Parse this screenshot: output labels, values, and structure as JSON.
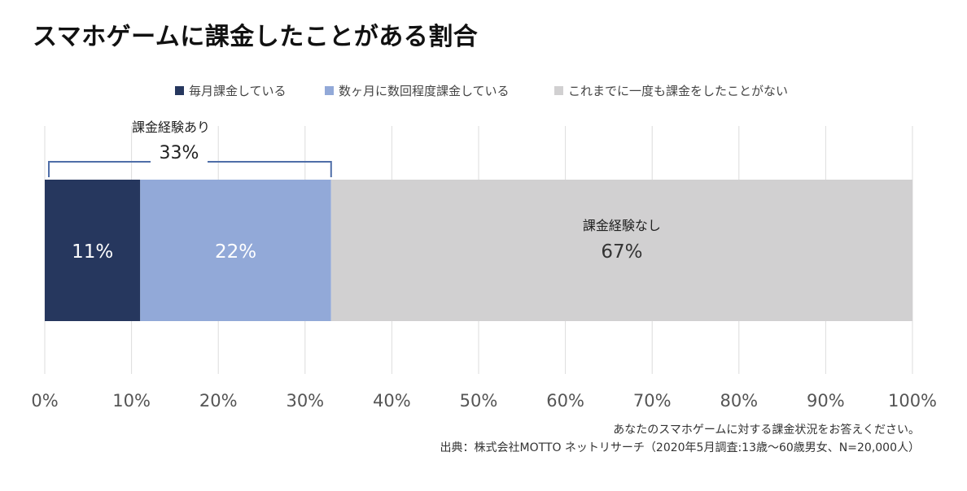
{
  "title": "スマホゲームに課金したことがある割合",
  "legend": [
    {
      "label": "毎月課金している",
      "color": "#26375e"
    },
    {
      "label": "数ヶ月に数回程度課金している",
      "color": "#92a9d8"
    },
    {
      "label": "これまでに一度も課金をしたことがない",
      "color": "#d1d0d1"
    }
  ],
  "bracket": {
    "label": "課金経験あり",
    "value": "33%"
  },
  "none_label": "課金経験なし",
  "notes": {
    "line1": "あなたのスマホゲームに対する課金状況をお答えください。",
    "line2": "出典：株式会社MOTTO ネットリサーチ（2020年5月調査:13歳〜60歳男女、N=20,000人）"
  },
  "chart_data": {
    "type": "bar",
    "orientation": "horizontal",
    "stacked": true,
    "title": "スマホゲームに課金したことがある割合",
    "xlim": [
      0,
      100
    ],
    "x_ticks": [
      "0%",
      "10%",
      "20%",
      "30%",
      "40%",
      "50%",
      "60%",
      "70%",
      "80%",
      "90%",
      "100%"
    ],
    "grid": true,
    "legend_position": "top",
    "series": [
      {
        "name": "毎月課金している",
        "value": 11,
        "label": "11%",
        "color": "#26375e",
        "label_color": "#ffffff"
      },
      {
        "name": "数ヶ月に数回程度課金している",
        "value": 22,
        "label": "22%",
        "color": "#92a9d8",
        "label_color": "#ffffff"
      },
      {
        "name": "これまでに一度も課金をしたことがない",
        "value": 67,
        "label": "67%",
        "color": "#d1d0d1",
        "label_color": "#333333"
      }
    ]
  }
}
